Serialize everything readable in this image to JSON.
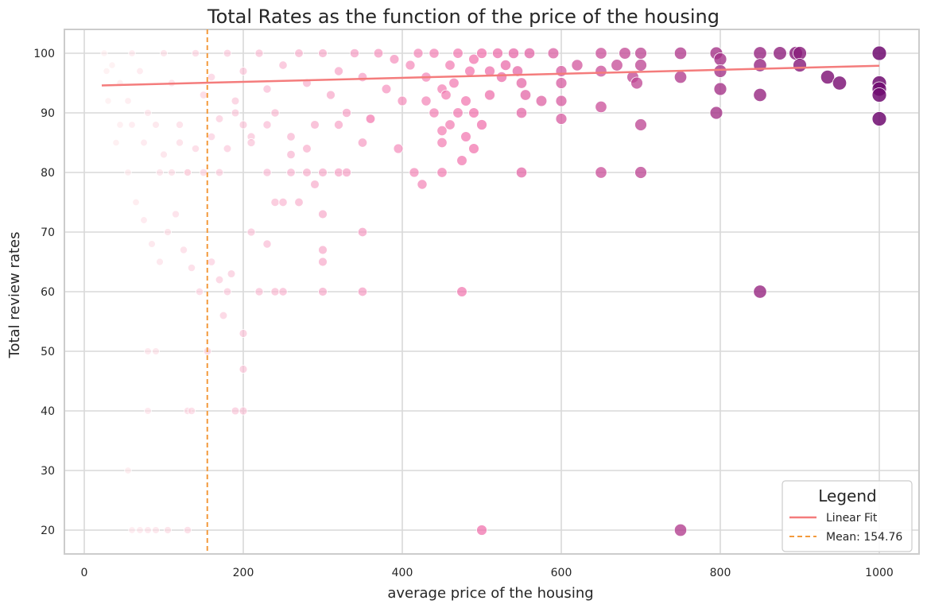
{
  "chart_data": {
    "type": "scatter",
    "title": "Total Rates as the function of the price of the housing",
    "xlabel": "average price of the housing",
    "ylabel": "Total review rates",
    "xlim": [
      -25,
      1050
    ],
    "ylim": [
      16,
      104
    ],
    "xticks": [
      0,
      200,
      400,
      600,
      800,
      1000
    ],
    "yticks": [
      20,
      30,
      40,
      50,
      60,
      70,
      80,
      90,
      100
    ],
    "grid": true,
    "legend": {
      "title": "Legend",
      "position": "bottom-right",
      "entries": [
        {
          "label": "Linear Fit",
          "color": "#f47c7c",
          "style": "solid"
        },
        {
          "label": "Mean: 154.76",
          "color": "#f39a3c",
          "style": "dashed"
        }
      ]
    },
    "mean_line": {
      "x": 154.76,
      "color": "#f39a3c"
    },
    "linear_fit": {
      "x": [
        22,
        1000
      ],
      "y": [
        94.6,
        97.9
      ],
      "color": "#f47c7c"
    },
    "color_scale": {
      "low": "#fff0ee",
      "mid": "#f06aa8",
      "high": "#6f0a70"
    },
    "series": [
      {
        "points": [
          [
            25,
            100
          ],
          [
            35,
            98
          ],
          [
            45,
            95
          ],
          [
            55,
            92
          ],
          [
            60,
            100
          ],
          [
            70,
            97
          ],
          [
            80,
            90
          ],
          [
            90,
            88
          ],
          [
            100,
            100
          ],
          [
            110,
            95
          ],
          [
            120,
            85
          ],
          [
            130,
            80
          ],
          [
            140,
            100
          ],
          [
            150,
            93
          ],
          [
            160,
            96
          ],
          [
            170,
            89
          ],
          [
            180,
            100
          ],
          [
            190,
            92
          ],
          [
            200,
            97
          ],
          [
            210,
            86
          ],
          [
            220,
            100
          ],
          [
            230,
            94
          ],
          [
            240,
            90
          ],
          [
            250,
            98
          ],
          [
            260,
            83
          ],
          [
            270,
            100
          ],
          [
            280,
            95
          ],
          [
            290,
            88
          ],
          [
            300,
            100
          ],
          [
            310,
            93
          ],
          [
            320,
            97
          ],
          [
            330,
            90
          ],
          [
            340,
            100
          ],
          [
            350,
            96
          ],
          [
            360,
            89
          ],
          [
            370,
            100
          ],
          [
            380,
            94
          ],
          [
            390,
            99
          ],
          [
            400,
            92
          ],
          [
            410,
            98
          ],
          [
            420,
            100
          ],
          [
            430,
            96
          ],
          [
            440,
            100
          ],
          [
            450,
            94
          ],
          [
            460,
            98
          ],
          [
            470,
            100
          ],
          [
            480,
            92
          ],
          [
            490,
            99
          ],
          [
            500,
            100
          ],
          [
            510,
            97
          ],
          [
            520,
            100
          ],
          [
            530,
            98
          ],
          [
            540,
            100
          ],
          [
            550,
            95
          ],
          [
            560,
            100
          ],
          [
            575,
            92
          ],
          [
            590,
            100
          ],
          [
            600,
            97
          ],
          [
            600,
            95
          ],
          [
            600,
            92
          ],
          [
            600,
            89
          ],
          [
            620,
            98
          ],
          [
            650,
            100
          ],
          [
            650,
            97
          ],
          [
            650,
            91
          ],
          [
            650,
            80
          ],
          [
            670,
            98
          ],
          [
            680,
            100
          ],
          [
            690,
            96
          ],
          [
            695,
            95
          ],
          [
            700,
            100
          ],
          [
            700,
            98
          ],
          [
            700,
            88
          ],
          [
            700,
            80
          ],
          [
            750,
            100
          ],
          [
            750,
            96
          ],
          [
            750,
            20
          ],
          [
            795,
            100
          ],
          [
            800,
            99
          ],
          [
            800,
            97
          ],
          [
            800,
            94
          ],
          [
            795,
            90
          ],
          [
            850,
            100
          ],
          [
            850,
            98
          ],
          [
            850,
            93
          ],
          [
            850,
            60
          ],
          [
            875,
            100
          ],
          [
            895,
            100
          ],
          [
            900,
            100
          ],
          [
            900,
            98
          ],
          [
            935,
            96
          ],
          [
            950,
            95
          ],
          [
            1000,
            100
          ],
          [
            1000,
            95
          ],
          [
            1000,
            94
          ],
          [
            1000,
            93
          ],
          [
            1000,
            89
          ],
          [
            40,
            85
          ],
          [
            55,
            80
          ],
          [
            65,
            75
          ],
          [
            75,
            72
          ],
          [
            85,
            68
          ],
          [
            95,
            65
          ],
          [
            105,
            70
          ],
          [
            115,
            73
          ],
          [
            125,
            67
          ],
          [
            135,
            64
          ],
          [
            145,
            60
          ],
          [
            160,
            65
          ],
          [
            170,
            62
          ],
          [
            175,
            56
          ],
          [
            180,
            60
          ],
          [
            185,
            63
          ],
          [
            200,
            53
          ],
          [
            200,
            47
          ],
          [
            200,
            40
          ],
          [
            190,
            40
          ],
          [
            155,
            50
          ],
          [
            90,
            50
          ],
          [
            80,
            50
          ],
          [
            80,
            40
          ],
          [
            130,
            40
          ],
          [
            135,
            40
          ],
          [
            55,
            30
          ],
          [
            60,
            20
          ],
          [
            70,
            20
          ],
          [
            80,
            20
          ],
          [
            90,
            20
          ],
          [
            105,
            20
          ],
          [
            130,
            20
          ],
          [
            300,
            73
          ],
          [
            300,
            67
          ],
          [
            300,
            65
          ],
          [
            300,
            60
          ],
          [
            350,
            70
          ],
          [
            350,
            60
          ],
          [
            475,
            60
          ],
          [
            500,
            20
          ],
          [
            210,
            70
          ],
          [
            220,
            60
          ],
          [
            240,
            60
          ],
          [
            250,
            60
          ],
          [
            230,
            68
          ],
          [
            240,
            75
          ],
          [
            250,
            75
          ],
          [
            270,
            75
          ],
          [
            290,
            78
          ],
          [
            415,
            80
          ],
          [
            425,
            78
          ],
          [
            450,
            80
          ],
          [
            550,
            80
          ],
          [
            475,
            82
          ],
          [
            490,
            84
          ],
          [
            395,
            84
          ],
          [
            430,
            92
          ],
          [
            460,
            88
          ],
          [
            480,
            86
          ],
          [
            350,
            85
          ],
          [
            300,
            80
          ],
          [
            320,
            80
          ],
          [
            330,
            80
          ],
          [
            280,
            80
          ],
          [
            260,
            80
          ],
          [
            230,
            80
          ],
          [
            210,
            85
          ],
          [
            190,
            90
          ],
          [
            170,
            80
          ],
          [
            150,
            80
          ],
          [
            130,
            80
          ],
          [
            110,
            80
          ],
          [
            95,
            80
          ],
          [
            45,
            88
          ],
          [
            30,
            92
          ],
          [
            28,
            97
          ],
          [
            60,
            88
          ],
          [
            75,
            85
          ],
          [
            100,
            83
          ],
          [
            120,
            88
          ],
          [
            140,
            84
          ],
          [
            160,
            86
          ],
          [
            180,
            84
          ],
          [
            200,
            88
          ],
          [
            230,
            88
          ],
          [
            260,
            86
          ],
          [
            280,
            84
          ],
          [
            320,
            88
          ],
          [
            360,
            89
          ],
          [
            450,
            87
          ],
          [
            450,
            85
          ],
          [
            470,
            90
          ],
          [
            490,
            90
          ],
          [
            500,
            88
          ],
          [
            440,
            90
          ],
          [
            455,
            93
          ],
          [
            465,
            95
          ],
          [
            485,
            97
          ],
          [
            510,
            93
          ],
          [
            525,
            96
          ],
          [
            545,
            97
          ],
          [
            550,
            90
          ],
          [
            555,
            93
          ]
        ]
      }
    ]
  }
}
